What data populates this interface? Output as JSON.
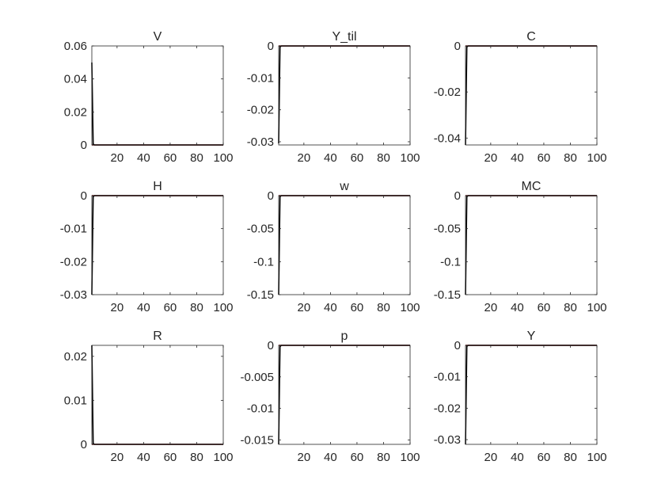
{
  "figure": {
    "background": "#ffffff",
    "axis_color": "#262626",
    "response_color": "#000000",
    "zero_line_color": "#8b0000"
  },
  "chart_data": [
    {
      "type": "line",
      "title": "V",
      "xlim": [
        1,
        100
      ],
      "ylim": [
        0,
        0.06
      ],
      "xticks": [
        20,
        40,
        60,
        80,
        100
      ],
      "xtick_labels": [
        "20",
        "40",
        "60",
        "80",
        "100"
      ],
      "yticks": [
        0,
        0.02,
        0.04,
        0.06
      ],
      "ytick_labels": [
        "0",
        "0.02",
        "0.04",
        "0.06"
      ],
      "series": [
        {
          "x": [
            1,
            2,
            3,
            100
          ],
          "y": [
            0.05,
            0.0005,
            0,
            0
          ]
        }
      ],
      "zero_line": 0
    },
    {
      "type": "line",
      "title": "Y_til",
      "xlim": [
        1,
        100
      ],
      "ylim": [
        -0.031,
        0.0
      ],
      "xticks": [
        20,
        40,
        60,
        80,
        100
      ],
      "xtick_labels": [
        "20",
        "40",
        "60",
        "80",
        "100"
      ],
      "yticks": [
        -0.03,
        -0.02,
        -0.01,
        0
      ],
      "ytick_labels": [
        "-0.03",
        "-0.02",
        "-0.01",
        "0"
      ],
      "series": [
        {
          "x": [
            1,
            2,
            3,
            100
          ],
          "y": [
            -0.0305,
            -0.0003,
            0,
            0
          ]
        }
      ],
      "zero_line": 0
    },
    {
      "type": "line",
      "title": "C",
      "xlim": [
        1,
        100
      ],
      "ylim": [
        -0.043,
        0.0
      ],
      "xticks": [
        20,
        40,
        60,
        80,
        100
      ],
      "xtick_labels": [
        "20",
        "40",
        "60",
        "80",
        "100"
      ],
      "yticks": [
        -0.04,
        -0.02,
        0
      ],
      "ytick_labels": [
        "-0.04",
        "-0.02",
        "0"
      ],
      "series": [
        {
          "x": [
            1,
            2,
            3,
            100
          ],
          "y": [
            -0.043,
            -0.0004,
            0,
            0
          ]
        }
      ],
      "zero_line": 0
    },
    {
      "type": "line",
      "title": "H",
      "xlim": [
        1,
        100
      ],
      "ylim": [
        -0.03,
        0.0
      ],
      "xticks": [
        20,
        40,
        60,
        80,
        100
      ],
      "xtick_labels": [
        "20",
        "40",
        "60",
        "80",
        "100"
      ],
      "yticks": [
        -0.03,
        -0.02,
        -0.01,
        0
      ],
      "ytick_labels": [
        "-0.03",
        "-0.02",
        "-0.01",
        "0"
      ],
      "series": [
        {
          "x": [
            1,
            2,
            3,
            100
          ],
          "y": [
            -0.03,
            -0.0003,
            0,
            0
          ]
        }
      ],
      "zero_line": 0
    },
    {
      "type": "line",
      "title": "w",
      "xlim": [
        1,
        100
      ],
      "ylim": [
        -0.15,
        0.0
      ],
      "xticks": [
        20,
        40,
        60,
        80,
        100
      ],
      "xtick_labels": [
        "20",
        "40",
        "60",
        "80",
        "100"
      ],
      "yticks": [
        -0.15,
        -0.1,
        -0.05,
        0
      ],
      "ytick_labels": [
        "-0.15",
        "-0.1",
        "-0.05",
        "0"
      ],
      "series": [
        {
          "x": [
            1,
            2,
            3,
            100
          ],
          "y": [
            -0.15,
            -0.0015,
            0,
            0
          ]
        }
      ],
      "zero_line": 0
    },
    {
      "type": "line",
      "title": "MC",
      "xlim": [
        1,
        100
      ],
      "ylim": [
        -0.15,
        0.0
      ],
      "xticks": [
        20,
        40,
        60,
        80,
        100
      ],
      "xtick_labels": [
        "20",
        "40",
        "60",
        "80",
        "100"
      ],
      "yticks": [
        -0.15,
        -0.1,
        -0.05,
        0
      ],
      "ytick_labels": [
        "-0.15",
        "-0.1",
        "-0.05",
        "0"
      ],
      "series": [
        {
          "x": [
            1,
            2,
            3,
            100
          ],
          "y": [
            -0.15,
            -0.0015,
            0,
            0
          ]
        }
      ],
      "zero_line": 0
    },
    {
      "type": "line",
      "title": "R",
      "xlim": [
        1,
        100
      ],
      "ylim": [
        0,
        0.0225
      ],
      "xticks": [
        20,
        40,
        60,
        80,
        100
      ],
      "xtick_labels": [
        "20",
        "40",
        "60",
        "80",
        "100"
      ],
      "yticks": [
        0,
        0.01,
        0.02
      ],
      "ytick_labels": [
        "0",
        "0.01",
        "0.02"
      ],
      "series": [
        {
          "x": [
            1,
            2,
            3,
            100
          ],
          "y": [
            0.0225,
            0.0002,
            0,
            0
          ]
        }
      ],
      "zero_line": 0
    },
    {
      "type": "line",
      "title": "p",
      "xlim": [
        1,
        100
      ],
      "ylim": [
        -0.0157,
        0.0
      ],
      "xticks": [
        20,
        40,
        60,
        80,
        100
      ],
      "xtick_labels": [
        "20",
        "40",
        "60",
        "80",
        "100"
      ],
      "yticks": [
        -0.015,
        -0.01,
        -0.005,
        0
      ],
      "ytick_labels": [
        "-0.015",
        "-0.01",
        "-0.005",
        "0"
      ],
      "series": [
        {
          "x": [
            1,
            2,
            3,
            100
          ],
          "y": [
            -0.0157,
            -0.0002,
            0,
            0
          ]
        }
      ],
      "zero_line": 0
    },
    {
      "type": "line",
      "title": "Y",
      "xlim": [
        1,
        100
      ],
      "ylim": [
        -0.0315,
        0.0
      ],
      "xticks": [
        20,
        40,
        60,
        80,
        100
      ],
      "xtick_labels": [
        "20",
        "40",
        "60",
        "80",
        "100"
      ],
      "yticks": [
        -0.03,
        -0.02,
        -0.01,
        0
      ],
      "ytick_labels": [
        "-0.03",
        "-0.02",
        "-0.01",
        "0"
      ],
      "series": [
        {
          "x": [
            1,
            2,
            3,
            100
          ],
          "y": [
            -0.0315,
            -0.0003,
            0,
            0
          ]
        }
      ],
      "zero_line": 0
    }
  ]
}
